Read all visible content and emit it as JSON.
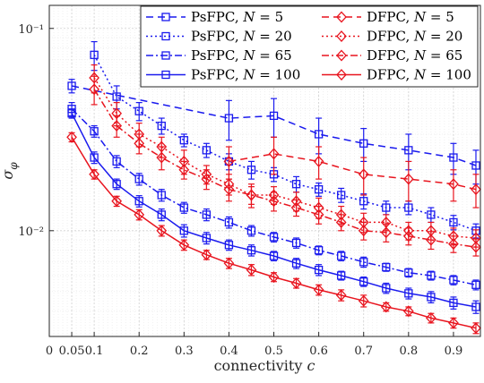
{
  "chart_data": {
    "type": "line",
    "xlabel": "connectivity c",
    "ylabel": "σ_φ",
    "xlim": [
      0,
      0.96
    ],
    "ylim": [
      0.003,
      0.13
    ],
    "yscale": "log",
    "grid": true,
    "legend_position": "top-right",
    "x_ticks": [
      0,
      0.05,
      0.1,
      0.2,
      0.3,
      0.4,
      0.5,
      0.6,
      0.7,
      0.8,
      0.9
    ],
    "x_tick_labels": [
      "0",
      "0.05",
      "0.1",
      "0.2",
      "0.3",
      "0.4",
      "0.5",
      "0.6",
      "0.7",
      "0.8",
      "0.9"
    ],
    "y_ticks": [
      0.01,
      0.1
    ],
    "y_tick_labels": [
      "10⁻²",
      "10⁻¹"
    ],
    "x": [
      0.05,
      0.1,
      0.15,
      0.2,
      0.25,
      0.3,
      0.35,
      0.4,
      0.45,
      0.5,
      0.55,
      0.6,
      0.65,
      0.7,
      0.75,
      0.8,
      0.85,
      0.9,
      0.95
    ],
    "series": [
      {
        "name": "PsFPC, N = 5",
        "color": "#1a1aee",
        "dash": "8,5",
        "marker": "square",
        "y": [
          0.052,
          null,
          null,
          null,
          null,
          null,
          null,
          0.036,
          null,
          0.037,
          null,
          0.03,
          null,
          0.027,
          null,
          0.025,
          null,
          0.023,
          0.021
        ],
        "err": [
          0.004,
          null,
          null,
          null,
          null,
          null,
          null,
          0.008,
          null,
          0.008,
          null,
          0.006,
          null,
          0.005,
          null,
          0.005,
          null,
          0.004,
          0.004
        ]
      },
      {
        "name": "PsFPC, N = 20",
        "color": "#1a1aee",
        "dash": "2,3",
        "marker": "square",
        "y": [
          null,
          0.074,
          0.046,
          0.039,
          0.033,
          0.028,
          0.025,
          0.022,
          0.02,
          0.019,
          0.017,
          0.016,
          0.015,
          0.014,
          0.013,
          0.013,
          0.012,
          0.011,
          0.01
        ],
        "err": [
          null,
          0.012,
          0.006,
          0.004,
          0.003,
          0.002,
          0.002,
          0.002,
          0.002,
          0.0015,
          0.0015,
          0.0012,
          0.0012,
          0.0012,
          0.001,
          0.001,
          0.001,
          0.0009,
          0.0008
        ]
      },
      {
        "name": "PsFPC, N = 65",
        "color": "#1a1aee",
        "dash": "8,3,2,3",
        "marker": "square",
        "y": [
          0.04,
          0.031,
          0.022,
          0.018,
          0.015,
          0.013,
          0.012,
          0.011,
          0.01,
          0.0093,
          0.0087,
          0.008,
          0.0075,
          0.007,
          0.0066,
          0.0062,
          0.006,
          0.0057,
          0.0054
        ],
        "err": [
          0.003,
          0.002,
          0.0015,
          0.0012,
          0.001,
          0.0008,
          0.0008,
          0.0007,
          0.0006,
          0.0005,
          0.0005,
          0.0004,
          0.0004,
          0.0004,
          0.0003,
          0.0003,
          0.0003,
          0.0003,
          0.0003
        ]
      },
      {
        "name": "PsFPC, N = 100",
        "color": "#1a1aee",
        "dash": "",
        "marker": "square",
        "y": [
          0.038,
          0.023,
          0.017,
          0.014,
          0.012,
          0.01,
          0.0092,
          0.0085,
          0.008,
          0.0075,
          0.0069,
          0.0064,
          0.006,
          0.0056,
          0.0052,
          0.0049,
          0.0047,
          0.0044,
          0.0042
        ],
        "err": [
          0.002,
          0.0015,
          0.001,
          0.0009,
          0.0008,
          0.0007,
          0.0006,
          0.0005,
          0.0005,
          0.0004,
          0.0004,
          0.0004,
          0.0003,
          0.0003,
          0.0003,
          0.0003,
          0.0003,
          0.0003,
          0.0003
        ]
      },
      {
        "name": "DFPC, N = 5",
        "color": "#e8141e",
        "dash": "8,5",
        "marker": "diamond",
        "y": [
          null,
          null,
          null,
          null,
          null,
          null,
          null,
          0.022,
          null,
          0.024,
          null,
          0.022,
          null,
          0.019,
          null,
          0.018,
          null,
          0.017,
          0.016
        ],
        "err": [
          null,
          null,
          null,
          null,
          null,
          null,
          null,
          0.004,
          null,
          0.005,
          null,
          0.004,
          null,
          0.004,
          null,
          0.004,
          null,
          0.003,
          0.003
        ]
      },
      {
        "name": "DFPC, N = 20",
        "color": "#e8141e",
        "dash": "2,3",
        "marker": "diamond",
        "y": [
          null,
          0.057,
          0.038,
          0.03,
          0.026,
          0.022,
          0.019,
          0.017,
          0.015,
          0.015,
          0.014,
          0.013,
          0.012,
          0.011,
          0.011,
          0.01,
          0.01,
          0.0094,
          0.0092
        ],
        "err": [
          null,
          0.009,
          0.005,
          0.004,
          0.003,
          0.003,
          0.002,
          0.002,
          0.002,
          0.0015,
          0.0015,
          0.0015,
          0.0012,
          0.0012,
          0.001,
          0.001,
          0.001,
          0.0009,
          0.0009
        ]
      },
      {
        "name": "DFPC, N = 65",
        "color": "#e8141e",
        "dash": "8,3,2,3",
        "marker": "diamond",
        "y": [
          null,
          0.05,
          0.033,
          0.027,
          0.023,
          0.02,
          0.018,
          0.016,
          0.015,
          0.014,
          0.013,
          0.012,
          0.011,
          0.01,
          0.0098,
          0.0094,
          0.009,
          0.0086,
          0.0083
        ],
        "err": [
          null,
          0.008,
          0.004,
          0.003,
          0.003,
          0.002,
          0.002,
          0.002,
          0.0015,
          0.0015,
          0.0012,
          0.0012,
          0.001,
          0.001,
          0.001,
          0.0009,
          0.0009,
          0.0008,
          0.0008
        ]
      },
      {
        "name": "DFPC, N = 100",
        "color": "#e8141e",
        "dash": "",
        "marker": "diamond",
        "y": [
          0.029,
          0.019,
          0.014,
          0.012,
          0.01,
          0.0085,
          0.0076,
          0.0069,
          0.0064,
          0.0059,
          0.0055,
          0.0051,
          0.0048,
          0.0045,
          0.0042,
          0.004,
          0.0037,
          0.0035,
          0.0033
        ],
        "err": [
          0.0015,
          0.001,
          0.0008,
          0.0007,
          0.0006,
          0.0005,
          0.0004,
          0.0004,
          0.0004,
          0.0003,
          0.0003,
          0.0003,
          0.0003,
          0.0003,
          0.0002,
          0.0002,
          0.0002,
          0.0002,
          0.0002
        ]
      }
    ]
  }
}
